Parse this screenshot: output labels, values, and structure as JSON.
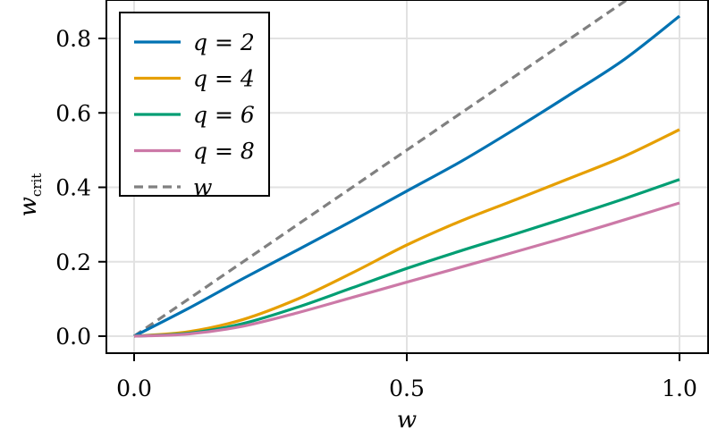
{
  "chart_data": {
    "type": "line",
    "xlabel": "w",
    "ylabel": "w",
    "ylabel_subscript": "crit",
    "xlim": [
      -0.05,
      1.05
    ],
    "ylim": [
      -0.05,
      0.9
    ],
    "x_ticks": [
      "0.0",
      "0.5",
      "1.0"
    ],
    "y_ticks": [
      "0.0",
      "0.2",
      "0.4",
      "0.6",
      "0.8"
    ],
    "grid": true,
    "legend_position": "top-left",
    "series": [
      {
        "name": "q = 2",
        "color": "#0072b2",
        "dash": "solid",
        "x": [
          0,
          0.1,
          0.2,
          0.3,
          0.4,
          0.5,
          0.6,
          0.7,
          0.8,
          0.9,
          1.0
        ],
        "y": [
          0,
          0.075,
          0.155,
          0.232,
          0.31,
          0.39,
          0.47,
          0.558,
          0.65,
          0.745,
          0.86
        ]
      },
      {
        "name": "q = 4",
        "color": "#e69f00",
        "dash": "solid",
        "x": [
          0,
          0.1,
          0.2,
          0.3,
          0.4,
          0.5,
          0.6,
          0.7,
          0.8,
          0.9,
          1.0
        ],
        "y": [
          0,
          0.012,
          0.045,
          0.1,
          0.17,
          0.245,
          0.31,
          0.367,
          0.425,
          0.484,
          0.555
        ]
      },
      {
        "name": "q = 6",
        "color": "#009e73",
        "dash": "solid",
        "x": [
          0,
          0.1,
          0.2,
          0.3,
          0.4,
          0.5,
          0.6,
          0.7,
          0.8,
          0.9,
          1.0
        ],
        "y": [
          0,
          0.008,
          0.034,
          0.078,
          0.13,
          0.182,
          0.23,
          0.275,
          0.322,
          0.37,
          0.421
        ]
      },
      {
        "name": "q = 8",
        "color": "#cc79a7",
        "dash": "solid",
        "x": [
          0,
          0.1,
          0.2,
          0.3,
          0.4,
          0.5,
          0.6,
          0.7,
          0.8,
          0.9,
          1.0
        ],
        "y": [
          0,
          0.006,
          0.027,
          0.063,
          0.104,
          0.145,
          0.186,
          0.227,
          0.269,
          0.313,
          0.358
        ]
      },
      {
        "name": "w",
        "color": "#808080",
        "dash": "dashed",
        "x": [
          0,
          1.0
        ],
        "y": [
          0,
          1.0
        ]
      }
    ]
  }
}
